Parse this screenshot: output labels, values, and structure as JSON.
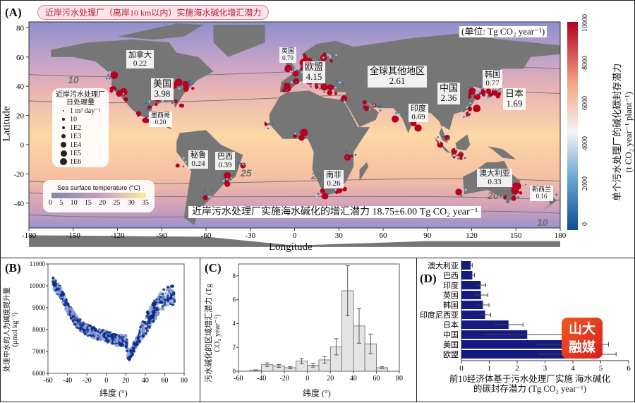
{
  "panelA": {
    "label": "(A)",
    "title": "近岸污水处理厂（离岸10 km以内）实施海水碱化增汇潜力",
    "unit_label": "(单位: Tg CO₂ year⁻¹)",
    "xlabel": "Longitude",
    "ylabel": "Latitude",
    "xticks": [
      "-180",
      "-150",
      "-120",
      "-90",
      "-60",
      "-30",
      "0",
      "30",
      "60",
      "90",
      "120",
      "150",
      "180"
    ],
    "yticks": [
      "80",
      "60",
      "40",
      "20",
      "0",
      "-20",
      "-40"
    ],
    "regions": [
      {
        "name": "加拿大",
        "value": "0.22"
      },
      {
        "name": "美国",
        "value": "3.98"
      },
      {
        "name": "墨西哥",
        "value": "0.20"
      },
      {
        "name": "秘鲁",
        "value": "0.24"
      },
      {
        "name": "巴西",
        "value": "0.39"
      },
      {
        "name": "英国",
        "value": "0.70"
      },
      {
        "name": "欧盟",
        "value": "4.15"
      },
      {
        "name": "全球其他地区",
        "value": "2.61"
      },
      {
        "name": "印度",
        "value": "0.69"
      },
      {
        "name": "中国",
        "value": "2.36"
      },
      {
        "name": "韩国",
        "value": "0.77"
      },
      {
        "name": "日本",
        "value": "1.69"
      },
      {
        "name": "南非",
        "value": "0.26"
      },
      {
        "name": "澳大利亚",
        "value": "0.33"
      },
      {
        "name": "新西兰",
        "value": "0.16"
      }
    ],
    "contour_labels": [
      "10",
      "25",
      "25",
      "20",
      "10"
    ],
    "size_legend": {
      "title1": "近岸污水处理厂",
      "title2": "日处理量",
      "items": [
        "1 m³ day⁻¹",
        "10",
        "1E2",
        "1E3",
        "1E4",
        "1E5",
        "1E6"
      ]
    },
    "sst_legend": {
      "title": "Sea surface temperature (°C)",
      "ticks": [
        "0",
        "5",
        "10",
        "15",
        "20",
        "25",
        "30",
        "35"
      ]
    },
    "total": "近岸污水处理厂实施海水碱化的增汇潜力 18.75±6.00 Tg CO₂ year⁻¹",
    "colorbar": {
      "ticks": [
        "0",
        "2000",
        "4000",
        "6000",
        "8000",
        "10000"
      ],
      "label1": "单个污水处理厂的碱化碳封存潜力",
      "label2": "(t CO₂ year⁻¹ plant⁻¹)"
    }
  },
  "chart_data": [
    {
      "type": "scatter",
      "panel": "(B)",
      "xlabel": "纬度 (°)",
      "ylabel": "处理中水的人为碱度提升量 (μmol kg⁻¹)",
      "xlim": [
        -60,
        80
      ],
      "ylim": [
        6000,
        11000
      ],
      "xticks": [
        "-60",
        "-40",
        "-20",
        "0",
        "20",
        "40",
        "60",
        "80"
      ],
      "yticks": [
        "6000",
        "7000",
        "8000",
        "9000",
        "10000",
        "11000"
      ],
      "trend": {
        "x": [
          -55,
          -47,
          -40,
          -35,
          -30,
          -20,
          -10,
          0,
          10,
          20,
          23,
          30,
          40,
          50,
          60,
          70
        ],
        "y": [
          10150,
          9700,
          9000,
          8700,
          8300,
          8000,
          7800,
          7700,
          7500,
          7500,
          6800,
          7300,
          8200,
          8900,
          9500,
          9600
        ]
      },
      "color": "#0a2a8a"
    },
    {
      "type": "bar",
      "panel": "(C)",
      "xlabel": "纬度 (°)",
      "ylabel": "污水碱化的区域增汇潜力 (Tg CO₂ year⁻¹)",
      "xlim": [
        -60,
        80
      ],
      "ylim": [
        0,
        9
      ],
      "xticks": [
        "-60",
        "-40",
        "-20",
        "0",
        "20",
        "40",
        "60",
        "80"
      ],
      "yticks": [
        "0",
        "2",
        "4",
        "6",
        "8"
      ],
      "x": [
        -45,
        -35,
        -25,
        -15,
        -5,
        5,
        15,
        25,
        35,
        45,
        55,
        65
      ],
      "values": [
        0.1,
        0.55,
        0.45,
        0.3,
        0.85,
        0.5,
        0.95,
        2.05,
        6.75,
        3.8,
        2.3,
        0.3
      ],
      "errors": [
        0.02,
        0.15,
        0.12,
        0.08,
        0.22,
        0.15,
        0.28,
        0.68,
        2.1,
        1.45,
        0.82,
        0.08
      ]
    },
    {
      "type": "bar",
      "panel": "(D)",
      "orientation": "horizontal",
      "xlabel": "前10经济体基于污水处理厂实施 海水碱化的碳封存潜力 (Tg CO₂ year⁻¹)",
      "xlim": [
        0,
        6
      ],
      "xticks": [
        "0",
        "1",
        "2",
        "3",
        "4",
        "5",
        "6"
      ],
      "categories": [
        "澳大利亚",
        "巴西",
        "印度",
        "英国",
        "韩国",
        "印度尼西亚",
        "日本",
        "中国",
        "美国",
        "欧盟"
      ],
      "values": [
        0.33,
        0.39,
        0.69,
        0.7,
        0.77,
        0.85,
        1.69,
        2.36,
        3.98,
        4.15
      ],
      "errors": [
        0.06,
        0.08,
        0.18,
        0.25,
        0.22,
        0.2,
        0.52,
        1.6,
        1.3,
        1.4
      ],
      "color": "#141a80"
    }
  ],
  "watermark": {
    "line1": "山大",
    "line2": "融媒"
  }
}
